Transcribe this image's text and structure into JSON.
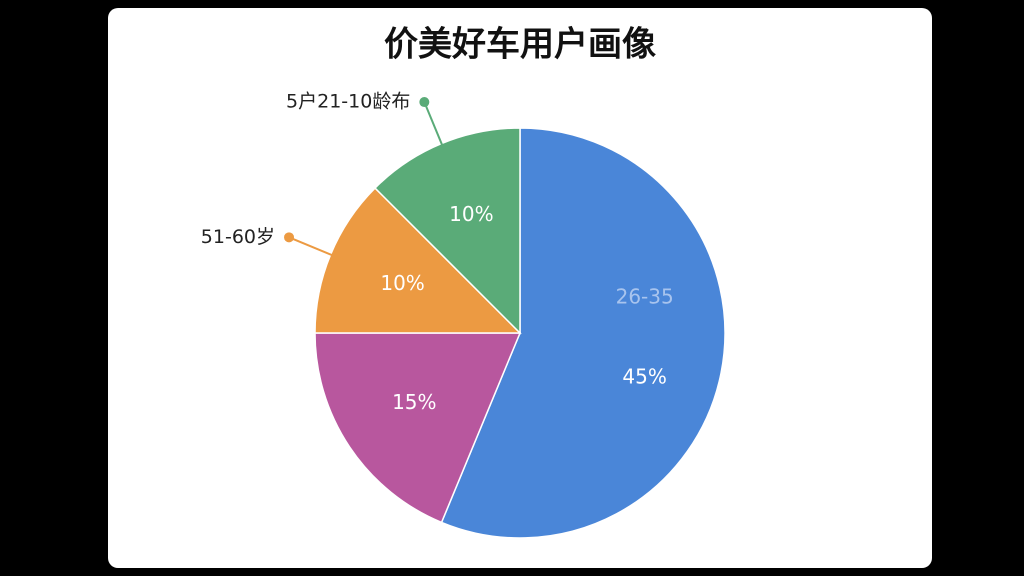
{
  "chart_data": {
    "type": "pie",
    "title": "价美好车用户画像",
    "categories": [
      "26-35",
      null,
      "51-60岁",
      "5户21-10龄布"
    ],
    "values": [
      45,
      15,
      10,
      10
    ],
    "value_labels": [
      "45%",
      "15%",
      "10%",
      "10%"
    ],
    "colors": [
      "#4a86d8",
      "#b8579e",
      "#ec9a42",
      "#5aab78"
    ]
  }
}
